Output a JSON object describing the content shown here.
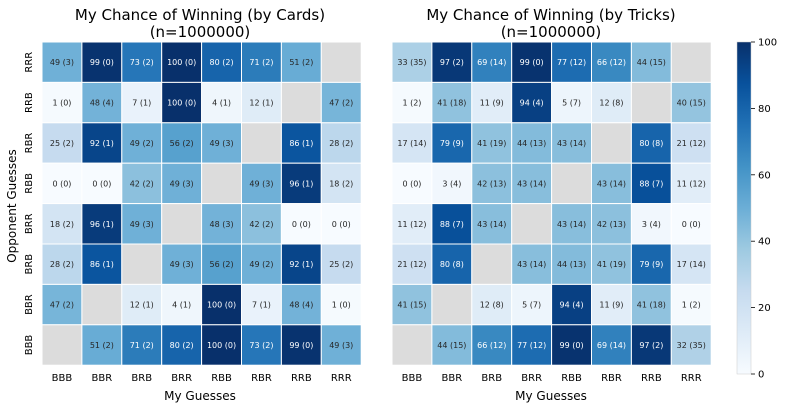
{
  "chart_data": [
    {
      "type": "heatmap",
      "title": "My Chance of Winning (by Cards)",
      "subtitle": "(n=1000000)",
      "xlabel": "My Guesses",
      "ylabel": "Opponent Guesses",
      "x_categories": [
        "BBB",
        "BBR",
        "BRB",
        "BRR",
        "RBB",
        "RBR",
        "RRB",
        "RRR"
      ],
      "y_categories": [
        "RRR",
        "RRB",
        "RBR",
        "RBB",
        "BRR",
        "BRB",
        "BBR",
        "BBB"
      ],
      "values": [
        [
          49,
          99,
          73,
          100,
          80,
          71,
          51,
          null
        ],
        [
          1,
          48,
          7,
          100,
          4,
          12,
          null,
          47
        ],
        [
          25,
          92,
          49,
          56,
          49,
          null,
          86,
          28
        ],
        [
          0,
          0,
          42,
          49,
          null,
          49,
          96,
          18
        ],
        [
          18,
          96,
          49,
          null,
          48,
          42,
          0,
          0
        ],
        [
          28,
          86,
          null,
          49,
          56,
          49,
          92,
          25
        ],
        [
          47,
          null,
          12,
          4,
          100,
          7,
          48,
          1
        ],
        [
          null,
          51,
          71,
          80,
          100,
          73,
          99,
          49
        ]
      ],
      "labels": [
        [
          "49 (3)",
          "99 (0)",
          "73 (2)",
          "100 (0)",
          "80 (2)",
          "71 (2)",
          "51 (2)",
          ""
        ],
        [
          "1 (0)",
          "48 (4)",
          "7 (1)",
          "100 (0)",
          "4 (1)",
          "12 (1)",
          "",
          "47 (2)"
        ],
        [
          "25 (2)",
          "92 (1)",
          "49 (2)",
          "56 (2)",
          "49 (3)",
          "",
          "86 (1)",
          "28 (2)"
        ],
        [
          "0 (0)",
          "0 (0)",
          "42 (2)",
          "49 (3)",
          "",
          "49 (3)",
          "96 (1)",
          "18 (2)"
        ],
        [
          "18 (2)",
          "96 (1)",
          "49 (3)",
          "",
          "48 (3)",
          "42 (2)",
          "0 (0)",
          "0 (0)"
        ],
        [
          "28 (2)",
          "86 (1)",
          "",
          "49 (3)",
          "56 (2)",
          "49 (2)",
          "92 (1)",
          "25 (2)"
        ],
        [
          "47 (2)",
          "",
          "12 (1)",
          "4 (1)",
          "100 (0)",
          "7 (1)",
          "48 (4)",
          "1 (0)"
        ],
        [
          "",
          "51 (2)",
          "71 (2)",
          "80 (2)",
          "100 (0)",
          "73 (2)",
          "99 (0)",
          "49 (3)"
        ]
      ]
    },
    {
      "type": "heatmap",
      "title": "My Chance of Winning (by Tricks)",
      "subtitle": "(n=1000000)",
      "xlabel": "My Guesses",
      "ylabel": "",
      "x_categories": [
        "BBB",
        "BBR",
        "BRB",
        "BRR",
        "RBB",
        "RBR",
        "RRB",
        "RRR"
      ],
      "y_categories": [
        "RRR",
        "RRB",
        "RBR",
        "RBB",
        "BRR",
        "BRB",
        "BBR",
        "BBB"
      ],
      "values": [
        [
          33,
          97,
          69,
          99,
          77,
          66,
          44,
          null
        ],
        [
          1,
          41,
          11,
          94,
          5,
          12,
          null,
          40
        ],
        [
          17,
          79,
          41,
          44,
          43,
          null,
          80,
          21
        ],
        [
          0,
          3,
          42,
          43,
          null,
          43,
          88,
          11
        ],
        [
          11,
          88,
          43,
          null,
          43,
          42,
          3,
          0
        ],
        [
          21,
          80,
          null,
          43,
          44,
          41,
          79,
          17
        ],
        [
          41,
          null,
          12,
          5,
          94,
          11,
          41,
          1
        ],
        [
          null,
          44,
          66,
          77,
          99,
          69,
          97,
          32
        ]
      ],
      "labels": [
        [
          "33 (35)",
          "97 (2)",
          "69 (14)",
          "99 (0)",
          "77 (12)",
          "66 (12)",
          "44 (15)",
          ""
        ],
        [
          "1 (2)",
          "41 (18)",
          "11 (9)",
          "94 (4)",
          "5 (7)",
          "12 (8)",
          "",
          "40 (15)"
        ],
        [
          "17 (14)",
          "79 (9)",
          "41 (19)",
          "44 (13)",
          "43 (14)",
          "",
          "80 (8)",
          "21 (12)"
        ],
        [
          "0 (0)",
          "3 (4)",
          "42 (13)",
          "43 (14)",
          "",
          "43 (14)",
          "88 (7)",
          "11 (12)"
        ],
        [
          "11 (12)",
          "88 (7)",
          "43 (14)",
          "",
          "43 (14)",
          "42 (13)",
          "3 (4)",
          "0 (0)"
        ],
        [
          "21 (12)",
          "80 (8)",
          "",
          "43 (14)",
          "44 (13)",
          "41 (19)",
          "79 (9)",
          "17 (14)"
        ],
        [
          "41 (15)",
          "",
          "12 (8)",
          "5 (7)",
          "94 (4)",
          "11 (9)",
          "41 (18)",
          "1 (2)"
        ],
        [
          "",
          "44 (15)",
          "66 (12)",
          "77 (12)",
          "99 (0)",
          "69 (14)",
          "97 (2)",
          "32 (35)"
        ]
      ]
    }
  ],
  "colorbar": {
    "min": 0,
    "max": 100,
    "ticks": [
      "0",
      "20",
      "40",
      "60",
      "80",
      "100"
    ],
    "colormap": "Blues",
    "colors": [
      "#f7fbff",
      "#deebf7",
      "#c6dbef",
      "#9ecae1",
      "#6baed6",
      "#4292c6",
      "#2171b5",
      "#08519c",
      "#08306b"
    ]
  },
  "missing_color": "#dcdcdc"
}
